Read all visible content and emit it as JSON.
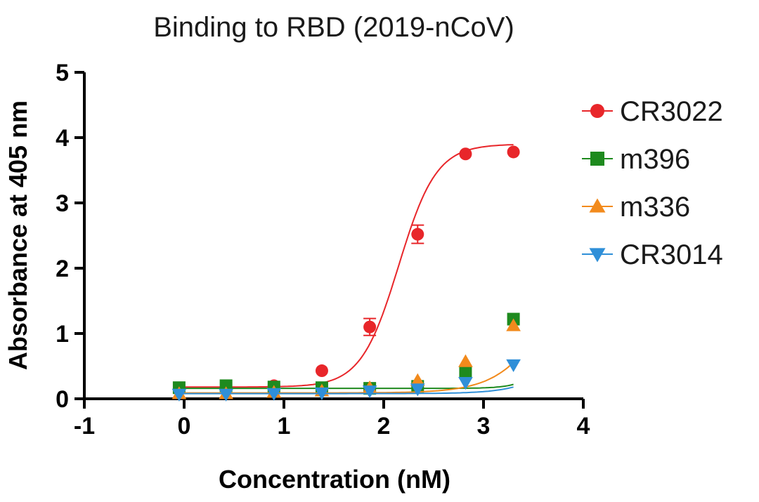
{
  "chart_data": {
    "type": "line",
    "title": "Binding to RBD (2019-nCoV)",
    "xlabel": "Concentration (nM)",
    "ylabel": "Absorbance at 405 nm",
    "xlim": [
      -1,
      4
    ],
    "ylim": [
      0,
      5
    ],
    "xticks": [
      "-1",
      "0",
      "1",
      "2",
      "3",
      "4"
    ],
    "yticks": [
      "0",
      "1",
      "2",
      "3",
      "4",
      "5"
    ],
    "legend_position": "right",
    "grid": false,
    "series": [
      {
        "name": "CR3022",
        "color": "#e8262a",
        "marker": "circle",
        "x": [
          -0.05,
          0.42,
          0.9,
          1.38,
          1.86,
          2.34,
          2.82,
          3.3
        ],
        "y": [
          0.15,
          0.17,
          0.2,
          0.43,
          1.1,
          2.52,
          3.75,
          3.78
        ],
        "error": [
          0.02,
          0.02,
          0.02,
          0.03,
          0.13,
          0.14,
          0.03,
          0.03
        ],
        "fit": {
          "bottom": 0.18,
          "top": 3.9,
          "logEC50": 2.15,
          "hill": 2.3
        }
      },
      {
        "name": "m396",
        "color": "#1e8a1e",
        "marker": "square",
        "x": [
          -0.05,
          0.42,
          0.9,
          1.38,
          1.86,
          2.34,
          2.82,
          3.3
        ],
        "y": [
          0.17,
          0.2,
          0.18,
          0.17,
          0.16,
          0.19,
          0.4,
          1.22
        ],
        "error": [
          0.02,
          0.02,
          0.02,
          0.02,
          0.02,
          0.02,
          0.03,
          0.04
        ],
        "fit": {
          "bottom": 0.16,
          "top": 4.0,
          "logEC50": 3.9,
          "hill": 3.0
        }
      },
      {
        "name": "m336",
        "color": "#f28a1c",
        "marker": "triangle-up",
        "x": [
          -0.05,
          0.42,
          0.9,
          1.38,
          1.86,
          2.34,
          2.82,
          3.3
        ],
        "y": [
          0.08,
          0.08,
          0.1,
          0.12,
          0.17,
          0.28,
          0.57,
          1.12
        ],
        "error": [
          0.01,
          0.01,
          0.01,
          0.01,
          0.02,
          0.02,
          0.03,
          0.04
        ],
        "fit": {
          "bottom": 0.09,
          "top": 3.0,
          "logEC50": 3.75,
          "hill": 1.6
        }
      },
      {
        "name": "CR3014",
        "color": "#2f8fd8",
        "marker": "triangle-down",
        "x": [
          -0.05,
          0.42,
          0.9,
          1.38,
          1.86,
          2.34,
          2.82,
          3.3
        ],
        "y": [
          0.07,
          0.07,
          0.08,
          0.09,
          0.12,
          0.15,
          0.25,
          0.52
        ],
        "error": [
          0.01,
          0.01,
          0.01,
          0.01,
          0.01,
          0.02,
          0.02,
          0.03
        ],
        "fit": {
          "bottom": 0.08,
          "top": 2.0,
          "logEC50": 4.0,
          "hill": 1.8
        }
      }
    ]
  }
}
